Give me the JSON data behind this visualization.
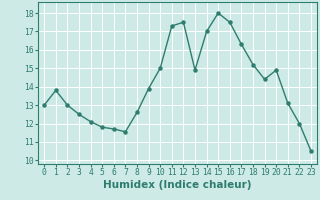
{
  "x": [
    0,
    1,
    2,
    3,
    4,
    5,
    6,
    7,
    8,
    9,
    10,
    11,
    12,
    13,
    14,
    15,
    16,
    17,
    18,
    19,
    20,
    21,
    22,
    23
  ],
  "y": [
    13.0,
    13.8,
    13.0,
    12.5,
    12.1,
    11.8,
    11.7,
    11.55,
    12.6,
    13.9,
    15.0,
    17.3,
    17.5,
    14.9,
    17.0,
    18.0,
    17.5,
    16.3,
    15.2,
    14.4,
    14.9,
    13.1,
    12.0,
    10.5
  ],
  "line_color": "#2e7d6e",
  "marker": "o",
  "marker_size": 2.2,
  "line_width": 1.0,
  "xlabel": "Humidex (Indice chaleur)",
  "xlim": [
    -0.5,
    23.5
  ],
  "ylim": [
    9.8,
    18.6
  ],
  "yticks": [
    10,
    11,
    12,
    13,
    14,
    15,
    16,
    17,
    18
  ],
  "xticks": [
    0,
    1,
    2,
    3,
    4,
    5,
    6,
    7,
    8,
    9,
    10,
    11,
    12,
    13,
    14,
    15,
    16,
    17,
    18,
    19,
    20,
    21,
    22,
    23
  ],
  "bg_color": "#cdeae6",
  "grid_color": "#ffffff",
  "tick_color": "#2e7d6e",
  "label_color": "#2e7d6e",
  "xlabel_fontsize": 7.5,
  "tick_fontsize": 5.8
}
